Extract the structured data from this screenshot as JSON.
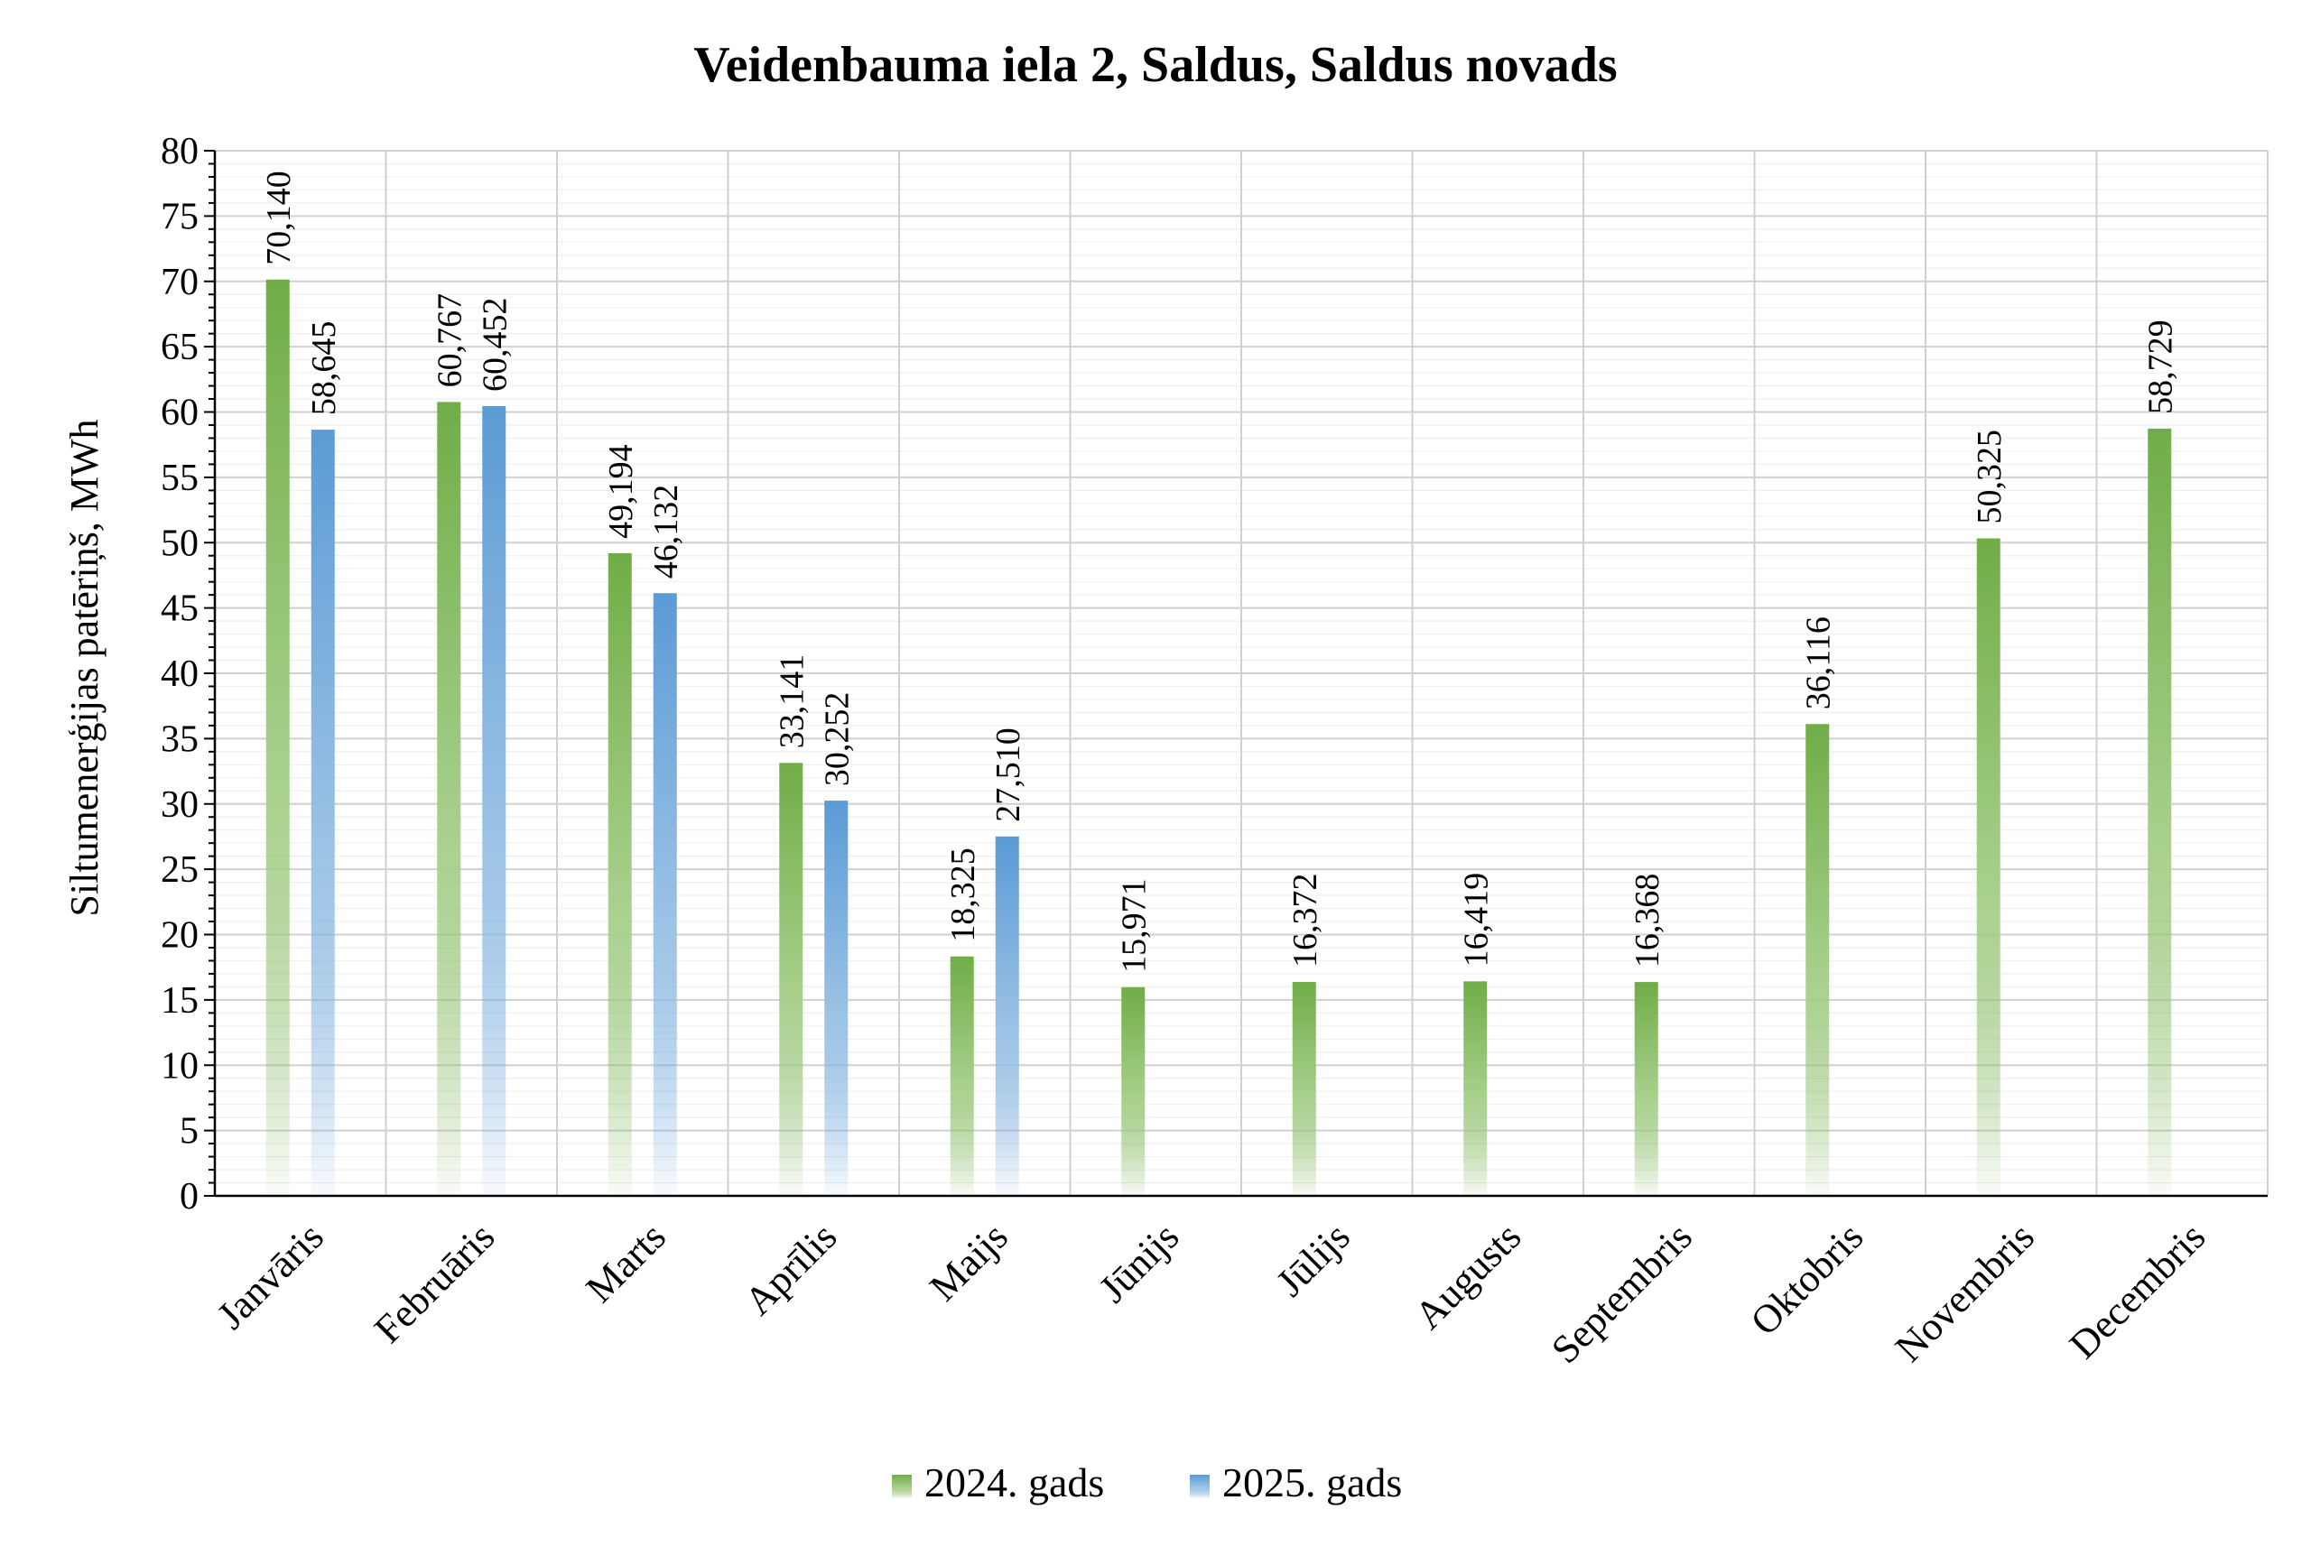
{
  "chart_data": {
    "type": "bar",
    "title": "Veidenbauma iela 2, Saldus, Saldus novads",
    "xlabel": "",
    "ylabel": "Siltumenerģijas patēriņš, MWh",
    "ylim": [
      0,
      80
    ],
    "ytick_step": 5,
    "yticks": [
      "0",
      "5",
      "10",
      "15",
      "20",
      "25",
      "30",
      "35",
      "40",
      "45",
      "50",
      "55",
      "60",
      "65",
      "70",
      "75",
      "80"
    ],
    "grid": true,
    "legend_position": "bottom",
    "categories": [
      "Janvāris",
      "Februāris",
      "Marts",
      "Aprīlis",
      "Maijs",
      "Jūnijs",
      "Jūlijs",
      "Augusts",
      "Septembris",
      "Oktobris",
      "Novembris",
      "Decembris"
    ],
    "series": [
      {
        "name": "2024. gads",
        "color": "#70ad47",
        "values": [
          70.14,
          60.767,
          49.194,
          33.141,
          18.325,
          15.971,
          16.372,
          16.419,
          16.368,
          36.116,
          50.325,
          58.729
        ],
        "labels": [
          "70,140",
          "60,767",
          "49,194",
          "33,141",
          "18,325",
          "15,971",
          "16,372",
          "16,419",
          "16,368",
          "36,116",
          "50,325",
          "58,729"
        ]
      },
      {
        "name": "2025. gads",
        "color": "#5b9bd5",
        "values": [
          58.645,
          60.452,
          46.132,
          30.252,
          27.51,
          null,
          null,
          null,
          null,
          null,
          null,
          null
        ],
        "labels": [
          "58,645",
          "60,452",
          "46,132",
          "30,252",
          "27,510",
          "",
          "",
          "",
          "",
          "",
          "",
          ""
        ]
      }
    ]
  }
}
